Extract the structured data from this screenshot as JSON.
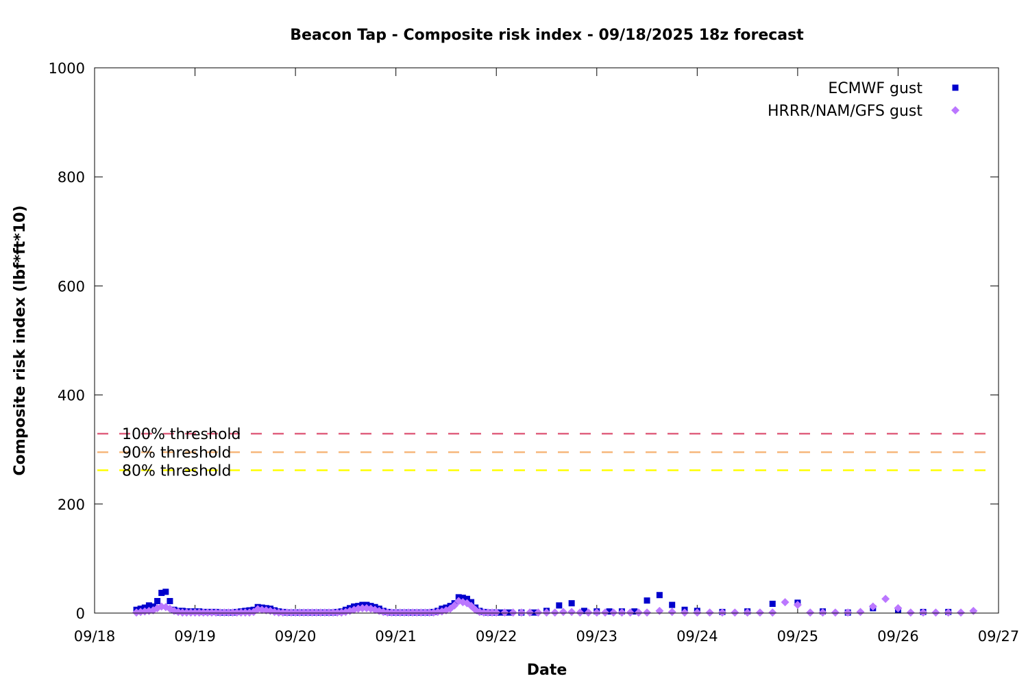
{
  "chart_data": {
    "type": "scatter",
    "title": "Beacon Tap - Composite risk index - 09/18/2025 18z forecast",
    "xlabel": "Date",
    "ylabel": "Composite risk index (lbf*ft*10)",
    "xlim": [
      "09/18",
      "09/27"
    ],
    "ylim": [
      0,
      1000
    ],
    "x_ticks": [
      "09/18",
      "09/19",
      "09/20",
      "09/21",
      "09/22",
      "09/23",
      "09/24",
      "09/25",
      "09/26",
      "09/27"
    ],
    "y_ticks": [
      "0",
      "200",
      "400",
      "600",
      "800",
      "1000"
    ],
    "grid": false,
    "legend": "top-right",
    "thresholds": [
      {
        "label": "100% threshold",
        "value": 329,
        "color": "#e0607e"
      },
      {
        "label": "90% threshold",
        "value": 295,
        "color": "#f6b67a"
      },
      {
        "label": "80% threshold",
        "value": 262,
        "color": "#ffff00"
      }
    ],
    "series": [
      {
        "name": "ECMWF gust",
        "marker": "square",
        "color": "#0000cc",
        "points": [
          [
            "09/18 10:00",
            6
          ],
          [
            "09/18 11:00",
            8
          ],
          [
            "09/18 12:00",
            10
          ],
          [
            "09/18 13:00",
            14
          ],
          [
            "09/18 14:00",
            12
          ],
          [
            "09/18 15:00",
            22
          ],
          [
            "09/18 16:00",
            37
          ],
          [
            "09/18 17:00",
            39
          ],
          [
            "09/18 18:00",
            22
          ],
          [
            "09/18 19:00",
            6
          ],
          [
            "09/18 20:00",
            4
          ],
          [
            "09/18 21:00",
            4
          ],
          [
            "09/18 22:00",
            3
          ],
          [
            "09/18 23:00",
            3
          ],
          [
            "09/19 00:00",
            3
          ],
          [
            "09/19 01:00",
            3
          ],
          [
            "09/19 02:00",
            2
          ],
          [
            "09/19 03:00",
            2
          ],
          [
            "09/19 04:00",
            2
          ],
          [
            "09/19 05:00",
            2
          ],
          [
            "09/19 06:00",
            1
          ],
          [
            "09/19 07:00",
            1
          ],
          [
            "09/19 08:00",
            1
          ],
          [
            "09/19 09:00",
            1
          ],
          [
            "09/19 10:00",
            2
          ],
          [
            "09/19 11:00",
            3
          ],
          [
            "09/19 12:00",
            4
          ],
          [
            "09/19 13:00",
            5
          ],
          [
            "09/19 14:00",
            6
          ],
          [
            "09/19 15:00",
            11
          ],
          [
            "09/19 16:00",
            10
          ],
          [
            "09/19 17:00",
            9
          ],
          [
            "09/19 18:00",
            8
          ],
          [
            "09/19 19:00",
            5
          ],
          [
            "09/19 20:00",
            3
          ],
          [
            "09/19 21:00",
            2
          ],
          [
            "09/19 22:00",
            1
          ],
          [
            "09/19 23:00",
            1
          ],
          [
            "09/20 00:00",
            1
          ],
          [
            "09/20 01:00",
            1
          ],
          [
            "09/20 02:00",
            1
          ],
          [
            "09/20 03:00",
            1
          ],
          [
            "09/20 04:00",
            1
          ],
          [
            "09/20 05:00",
            1
          ],
          [
            "09/20 06:00",
            1
          ],
          [
            "09/20 07:00",
            1
          ],
          [
            "09/20 08:00",
            1
          ],
          [
            "09/20 09:00",
            1
          ],
          [
            "09/20 10:00",
            2
          ],
          [
            "09/20 11:00",
            3
          ],
          [
            "09/20 12:00",
            6
          ],
          [
            "09/20 13:00",
            9
          ],
          [
            "09/20 14:00",
            12
          ],
          [
            "09/20 15:00",
            13
          ],
          [
            "09/20 16:00",
            15
          ],
          [
            "09/20 17:00",
            15
          ],
          [
            "09/20 18:00",
            13
          ],
          [
            "09/20 19:00",
            11
          ],
          [
            "09/20 20:00",
            8
          ],
          [
            "09/20 21:00",
            4
          ],
          [
            "09/20 22:00",
            2
          ],
          [
            "09/20 23:00",
            1
          ],
          [
            "09/21 00:00",
            1
          ],
          [
            "09/21 01:00",
            1
          ],
          [
            "09/21 02:00",
            1
          ],
          [
            "09/21 03:00",
            1
          ],
          [
            "09/21 04:00",
            1
          ],
          [
            "09/21 05:00",
            1
          ],
          [
            "09/21 06:00",
            1
          ],
          [
            "09/21 07:00",
            1
          ],
          [
            "09/21 08:00",
            1
          ],
          [
            "09/21 09:00",
            2
          ],
          [
            "09/21 10:00",
            4
          ],
          [
            "09/21 11:00",
            8
          ],
          [
            "09/21 12:00",
            10
          ],
          [
            "09/21 13:00",
            13
          ],
          [
            "09/21 14:00",
            18
          ],
          [
            "09/21 15:00",
            29
          ],
          [
            "09/21 16:00",
            28
          ],
          [
            "09/21 17:00",
            26
          ],
          [
            "09/21 18:00",
            20
          ],
          [
            "09/21 19:00",
            10
          ],
          [
            "09/21 20:00",
            4
          ],
          [
            "09/21 21:00",
            2
          ],
          [
            "09/21 22:00",
            1
          ],
          [
            "09/21 23:00",
            1
          ],
          [
            "09/22 00:00",
            1
          ],
          [
            "09/22 01:00",
            1
          ],
          [
            "09/22 03:00",
            1
          ],
          [
            "09/22 06:00",
            1
          ],
          [
            "09/22 09:00",
            1
          ],
          [
            "09/22 12:00",
            4
          ],
          [
            "09/22 15:00",
            14
          ],
          [
            "09/22 18:00",
            18
          ],
          [
            "09/22 21:00",
            4
          ],
          [
            "09/23 00:00",
            3
          ],
          [
            "09/23 03:00",
            3
          ],
          [
            "09/23 06:00",
            3
          ],
          [
            "09/23 09:00",
            3
          ],
          [
            "09/23 12:00",
            23
          ],
          [
            "09/23 15:00",
            33
          ],
          [
            "09/23 18:00",
            15
          ],
          [
            "09/23 21:00",
            6
          ],
          [
            "09/24 00:00",
            4
          ],
          [
            "09/24 06:00",
            2
          ],
          [
            "09/24 12:00",
            3
          ],
          [
            "09/24 18:00",
            17
          ],
          [
            "09/25 00:00",
            19
          ],
          [
            "09/25 06:00",
            3
          ],
          [
            "09/25 12:00",
            1
          ],
          [
            "09/25 18:00",
            9
          ],
          [
            "09/26 00:00",
            5
          ],
          [
            "09/26 06:00",
            2
          ],
          [
            "09/26 12:00",
            2
          ]
        ]
      },
      {
        "name": "HRRR/NAM/GFS gust",
        "marker": "diamond",
        "color": "#bb77ff",
        "points": [
          [
            "09/18 10:00",
            1
          ],
          [
            "09/18 11:00",
            2
          ],
          [
            "09/18 12:00",
            3
          ],
          [
            "09/18 13:00",
            4
          ],
          [
            "09/18 14:00",
            5
          ],
          [
            "09/18 15:00",
            9
          ],
          [
            "09/18 16:00",
            12
          ],
          [
            "09/18 17:00",
            11
          ],
          [
            "09/18 18:00",
            8
          ],
          [
            "09/18 19:00",
            4
          ],
          [
            "09/18 20:00",
            2
          ],
          [
            "09/18 21:00",
            1
          ],
          [
            "09/18 22:00",
            1
          ],
          [
            "09/18 23:00",
            1
          ],
          [
            "09/19 00:00",
            1
          ],
          [
            "09/19 01:00",
            1
          ],
          [
            "09/19 02:00",
            1
          ],
          [
            "09/19 03:00",
            1
          ],
          [
            "09/19 04:00",
            1
          ],
          [
            "09/19 05:00",
            1
          ],
          [
            "09/19 06:00",
            1
          ],
          [
            "09/19 07:00",
            1
          ],
          [
            "09/19 08:00",
            1
          ],
          [
            "09/19 09:00",
            1
          ],
          [
            "09/19 10:00",
            1
          ],
          [
            "09/19 11:00",
            1
          ],
          [
            "09/19 12:00",
            1
          ],
          [
            "09/19 13:00",
            1
          ],
          [
            "09/19 14:00",
            2
          ],
          [
            "09/19 15:00",
            7
          ],
          [
            "09/19 16:00",
            6
          ],
          [
            "09/19 17:00",
            5
          ],
          [
            "09/19 18:00",
            4
          ],
          [
            "09/19 19:00",
            2
          ],
          [
            "09/19 20:00",
            1
          ],
          [
            "09/19 21:00",
            1
          ],
          [
            "09/19 22:00",
            1
          ],
          [
            "09/19 23:00",
            1
          ],
          [
            "09/20 00:00",
            1
          ],
          [
            "09/20 01:00",
            1
          ],
          [
            "09/20 02:00",
            1
          ],
          [
            "09/20 03:00",
            1
          ],
          [
            "09/20 04:00",
            1
          ],
          [
            "09/20 05:00",
            1
          ],
          [
            "09/20 06:00",
            1
          ],
          [
            "09/20 07:00",
            1
          ],
          [
            "09/20 08:00",
            1
          ],
          [
            "09/20 09:00",
            1
          ],
          [
            "09/20 10:00",
            1
          ],
          [
            "09/20 11:00",
            1
          ],
          [
            "09/20 12:00",
            2
          ],
          [
            "09/20 13:00",
            4
          ],
          [
            "09/20 14:00",
            6
          ],
          [
            "09/20 15:00",
            8
          ],
          [
            "09/20 16:00",
            9
          ],
          [
            "09/20 17:00",
            9
          ],
          [
            "09/20 18:00",
            8
          ],
          [
            "09/20 19:00",
            6
          ],
          [
            "09/20 20:00",
            4
          ],
          [
            "09/20 21:00",
            2
          ],
          [
            "09/20 22:00",
            1
          ],
          [
            "09/20 23:00",
            1
          ],
          [
            "09/21 00:00",
            1
          ],
          [
            "09/21 01:00",
            1
          ],
          [
            "09/21 02:00",
            1
          ],
          [
            "09/21 03:00",
            1
          ],
          [
            "09/21 04:00",
            1
          ],
          [
            "09/21 05:00",
            1
          ],
          [
            "09/21 06:00",
            1
          ],
          [
            "09/21 07:00",
            1
          ],
          [
            "09/21 08:00",
            1
          ],
          [
            "09/21 09:00",
            1
          ],
          [
            "09/21 10:00",
            2
          ],
          [
            "09/21 11:00",
            3
          ],
          [
            "09/21 12:00",
            5
          ],
          [
            "09/21 13:00",
            8
          ],
          [
            "09/21 14:00",
            14
          ],
          [
            "09/21 15:00",
            22
          ],
          [
            "09/21 16:00",
            20
          ],
          [
            "09/21 17:00",
            18
          ],
          [
            "09/21 18:00",
            13
          ],
          [
            "09/21 19:00",
            6
          ],
          [
            "09/21 20:00",
            2
          ],
          [
            "09/21 21:00",
            1
          ],
          [
            "09/21 22:00",
            1
          ],
          [
            "09/21 23:00",
            1
          ],
          [
            "09/22 00:00",
            1
          ],
          [
            "09/22 02:00",
            1
          ],
          [
            "09/22 04:00",
            1
          ],
          [
            "09/22 06:00",
            1
          ],
          [
            "09/22 08:00",
            1
          ],
          [
            "09/22 10:00",
            1
          ],
          [
            "09/22 12:00",
            1
          ],
          [
            "09/22 14:00",
            1
          ],
          [
            "09/22 16:00",
            2
          ],
          [
            "09/22 18:00",
            2
          ],
          [
            "09/22 20:00",
            1
          ],
          [
            "09/22 22:00",
            1
          ],
          [
            "09/23 00:00",
            1
          ],
          [
            "09/23 02:00",
            1
          ],
          [
            "09/23 04:00",
            1
          ],
          [
            "09/23 06:00",
            1
          ],
          [
            "09/23 08:00",
            1
          ],
          [
            "09/23 10:00",
            1
          ],
          [
            "09/23 12:00",
            1
          ],
          [
            "09/23 15:00",
            4
          ],
          [
            "09/23 18:00",
            2
          ],
          [
            "09/23 21:00",
            1
          ],
          [
            "09/24 00:00",
            1
          ],
          [
            "09/24 03:00",
            1
          ],
          [
            "09/24 06:00",
            1
          ],
          [
            "09/24 09:00",
            1
          ],
          [
            "09/24 12:00",
            1
          ],
          [
            "09/24 15:00",
            1
          ],
          [
            "09/24 18:00",
            1
          ],
          [
            "09/24 21:00",
            20
          ],
          [
            "09/25 00:00",
            15
          ],
          [
            "09/25 03:00",
            1
          ],
          [
            "09/25 06:00",
            1
          ],
          [
            "09/25 09:00",
            1
          ],
          [
            "09/25 12:00",
            1
          ],
          [
            "09/25 15:00",
            2
          ],
          [
            "09/25 18:00",
            12
          ],
          [
            "09/25 21:00",
            26
          ],
          [
            "09/26 00:00",
            9
          ],
          [
            "09/26 03:00",
            1
          ],
          [
            "09/26 06:00",
            1
          ],
          [
            "09/26 09:00",
            1
          ],
          [
            "09/26 12:00",
            1
          ],
          [
            "09/26 15:00",
            1
          ],
          [
            "09/26 18:00",
            4
          ]
        ]
      }
    ]
  }
}
